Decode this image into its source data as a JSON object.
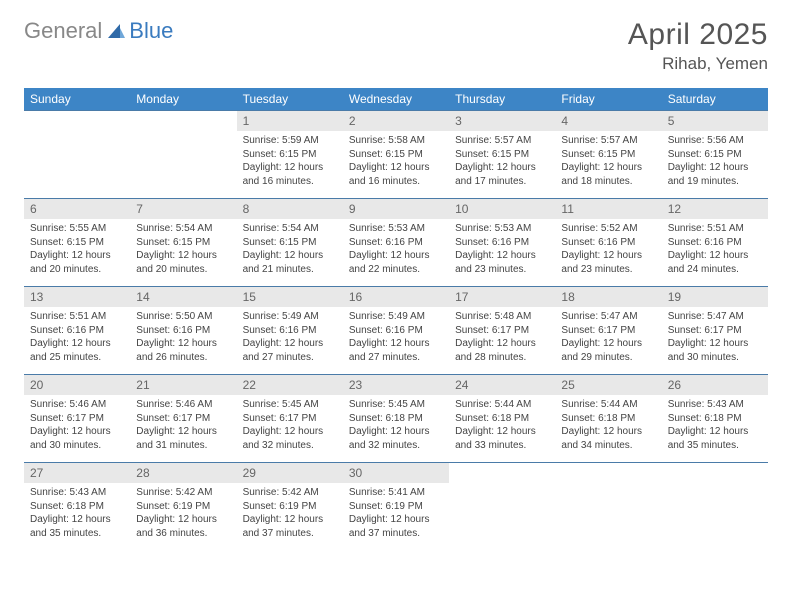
{
  "logo": {
    "word1": "General",
    "word2": "Blue"
  },
  "title": "April 2025",
  "location": "Rihab, Yemen",
  "colors": {
    "header_bg": "#3d85c6",
    "header_text": "#ffffff",
    "daynum_bg": "#e8e8e8",
    "daynum_text": "#666666",
    "body_text": "#444444",
    "rule": "#4a7ba8",
    "logo_gray": "#888888",
    "logo_blue": "#3a7bbf"
  },
  "weekdays": [
    "Sunday",
    "Monday",
    "Tuesday",
    "Wednesday",
    "Thursday",
    "Friday",
    "Saturday"
  ],
  "weeks": [
    [
      null,
      null,
      {
        "n": "1",
        "sunrise": "5:59 AM",
        "sunset": "6:15 PM",
        "daylight": "12 hours and 16 minutes."
      },
      {
        "n": "2",
        "sunrise": "5:58 AM",
        "sunset": "6:15 PM",
        "daylight": "12 hours and 16 minutes."
      },
      {
        "n": "3",
        "sunrise": "5:57 AM",
        "sunset": "6:15 PM",
        "daylight": "12 hours and 17 minutes."
      },
      {
        "n": "4",
        "sunrise": "5:57 AM",
        "sunset": "6:15 PM",
        "daylight": "12 hours and 18 minutes."
      },
      {
        "n": "5",
        "sunrise": "5:56 AM",
        "sunset": "6:15 PM",
        "daylight": "12 hours and 19 minutes."
      }
    ],
    [
      {
        "n": "6",
        "sunrise": "5:55 AM",
        "sunset": "6:15 PM",
        "daylight": "12 hours and 20 minutes."
      },
      {
        "n": "7",
        "sunrise": "5:54 AM",
        "sunset": "6:15 PM",
        "daylight": "12 hours and 20 minutes."
      },
      {
        "n": "8",
        "sunrise": "5:54 AM",
        "sunset": "6:15 PM",
        "daylight": "12 hours and 21 minutes."
      },
      {
        "n": "9",
        "sunrise": "5:53 AM",
        "sunset": "6:16 PM",
        "daylight": "12 hours and 22 minutes."
      },
      {
        "n": "10",
        "sunrise": "5:53 AM",
        "sunset": "6:16 PM",
        "daylight": "12 hours and 23 minutes."
      },
      {
        "n": "11",
        "sunrise": "5:52 AM",
        "sunset": "6:16 PM",
        "daylight": "12 hours and 23 minutes."
      },
      {
        "n": "12",
        "sunrise": "5:51 AM",
        "sunset": "6:16 PM",
        "daylight": "12 hours and 24 minutes."
      }
    ],
    [
      {
        "n": "13",
        "sunrise": "5:51 AM",
        "sunset": "6:16 PM",
        "daylight": "12 hours and 25 minutes."
      },
      {
        "n": "14",
        "sunrise": "5:50 AM",
        "sunset": "6:16 PM",
        "daylight": "12 hours and 26 minutes."
      },
      {
        "n": "15",
        "sunrise": "5:49 AM",
        "sunset": "6:16 PM",
        "daylight": "12 hours and 27 minutes."
      },
      {
        "n": "16",
        "sunrise": "5:49 AM",
        "sunset": "6:16 PM",
        "daylight": "12 hours and 27 minutes."
      },
      {
        "n": "17",
        "sunrise": "5:48 AM",
        "sunset": "6:17 PM",
        "daylight": "12 hours and 28 minutes."
      },
      {
        "n": "18",
        "sunrise": "5:47 AM",
        "sunset": "6:17 PM",
        "daylight": "12 hours and 29 minutes."
      },
      {
        "n": "19",
        "sunrise": "5:47 AM",
        "sunset": "6:17 PM",
        "daylight": "12 hours and 30 minutes."
      }
    ],
    [
      {
        "n": "20",
        "sunrise": "5:46 AM",
        "sunset": "6:17 PM",
        "daylight": "12 hours and 30 minutes."
      },
      {
        "n": "21",
        "sunrise": "5:46 AM",
        "sunset": "6:17 PM",
        "daylight": "12 hours and 31 minutes."
      },
      {
        "n": "22",
        "sunrise": "5:45 AM",
        "sunset": "6:17 PM",
        "daylight": "12 hours and 32 minutes."
      },
      {
        "n": "23",
        "sunrise": "5:45 AM",
        "sunset": "6:18 PM",
        "daylight": "12 hours and 32 minutes."
      },
      {
        "n": "24",
        "sunrise": "5:44 AM",
        "sunset": "6:18 PM",
        "daylight": "12 hours and 33 minutes."
      },
      {
        "n": "25",
        "sunrise": "5:44 AM",
        "sunset": "6:18 PM",
        "daylight": "12 hours and 34 minutes."
      },
      {
        "n": "26",
        "sunrise": "5:43 AM",
        "sunset": "6:18 PM",
        "daylight": "12 hours and 35 minutes."
      }
    ],
    [
      {
        "n": "27",
        "sunrise": "5:43 AM",
        "sunset": "6:18 PM",
        "daylight": "12 hours and 35 minutes."
      },
      {
        "n": "28",
        "sunrise": "5:42 AM",
        "sunset": "6:19 PM",
        "daylight": "12 hours and 36 minutes."
      },
      {
        "n": "29",
        "sunrise": "5:42 AM",
        "sunset": "6:19 PM",
        "daylight": "12 hours and 37 minutes."
      },
      {
        "n": "30",
        "sunrise": "5:41 AM",
        "sunset": "6:19 PM",
        "daylight": "12 hours and 37 minutes."
      },
      null,
      null,
      null
    ]
  ],
  "labels": {
    "sunrise": "Sunrise:",
    "sunset": "Sunset:",
    "daylight": "Daylight:"
  }
}
